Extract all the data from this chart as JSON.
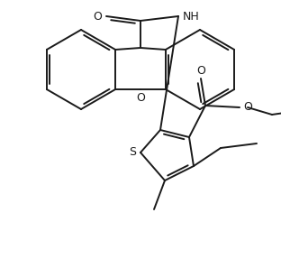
{
  "bg": "#ffffff",
  "lc": "#1a1a1a",
  "lw": 1.4,
  "figsize": [
    3.12,
    2.87
  ],
  "dpi": 100,
  "xlim": [
    0,
    312
  ],
  "ylim": [
    0,
    287
  ]
}
